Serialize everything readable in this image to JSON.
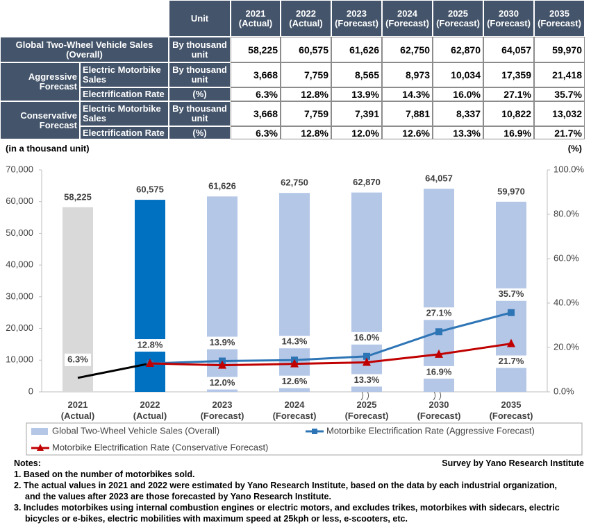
{
  "table": {
    "unit_header": "Unit",
    "years": [
      "2021 (Actual)",
      "2022 (Actual)",
      "2023 (Forecast)",
      "2024 (Forecast)",
      "2025 (Forecast)",
      "2030 (Forecast)",
      "2035 (Forecast)"
    ],
    "overall": {
      "label": "Global Two-Wheel Vehicle Sales (Overall)",
      "unit": "By thousand unit",
      "cells": [
        "58,225",
        "60,575",
        "61,626",
        "62,750",
        "62,870",
        "64,057",
        "59,970"
      ]
    },
    "groups": [
      {
        "label": "Aggressive Forecast",
        "rows": [
          {
            "label": "Electric Motorbike Sales",
            "unit": "By thousand unit",
            "cells": [
              "3,668",
              "7,759",
              "8,565",
              "8,973",
              "10,034",
              "17,359",
              "21,418"
            ]
          },
          {
            "label": "Electrification Rate",
            "unit": "(%)",
            "cells": [
              "6.3%",
              "12.8%",
              "13.9%",
              "14.3%",
              "16.0%",
              "27.1%",
              "35.7%"
            ]
          }
        ]
      },
      {
        "label": "Conservative Forecast",
        "rows": [
          {
            "label": "Electric Motorbike Sales",
            "unit": "By thousand unit",
            "cells": [
              "3,668",
              "7,759",
              "7,391",
              "7,881",
              "8,337",
              "10,822",
              "13,032"
            ]
          },
          {
            "label": "Electrification Rate",
            "unit": "(%)",
            "cells": [
              "6.3%",
              "12.8%",
              "12.0%",
              "12.6%",
              "13.3%",
              "16.9%",
              "21.7%"
            ]
          }
        ]
      }
    ]
  },
  "chart_data": {
    "type": "bar",
    "y_label": "(in a thousand unit)",
    "y2_label": "(%)",
    "categories": [
      "2021 (Actual)",
      "2022 (Actual)",
      "2023 (Forecast)",
      "2024 (Forecast)",
      "2025 (Forecast)",
      "2030 (Forecast)",
      "2035 (Forecast)"
    ],
    "ylim": [
      0,
      70000
    ],
    "yticks": [
      0,
      {
        "value": 10000,
        "label": "10,000"
      },
      {
        "value": 20000,
        "label": "20,000"
      },
      {
        "value": 30000,
        "label": "30,000"
      },
      {
        "value": 40000,
        "label": "40,000"
      },
      {
        "value": 50000,
        "label": "50,000"
      },
      {
        "value": 60000,
        "label": "60,000"
      },
      {
        "value": 70000,
        "label": "70,000"
      }
    ],
    "y2lim": [
      0,
      100
    ],
    "y2ticks": [
      {
        "value": 0,
        "label": "0.0%"
      },
      {
        "value": 20,
        "label": "20.0%"
      },
      {
        "value": 40,
        "label": "40.0%"
      },
      {
        "value": 60,
        "label": "60.0%"
      },
      {
        "value": 80,
        "label": "80.0%"
      },
      {
        "value": 100,
        "label": "100.0%"
      }
    ],
    "series": [
      {
        "name": "Global Two-Wheel Vehicle Sales (Overall)",
        "type": "bar",
        "color": "#b4c7e7",
        "colors": [
          "#d9d9d9",
          "#0070c0",
          "#b4c7e7",
          "#b4c7e7",
          "#b4c7e7",
          "#b4c7e7",
          "#b4c7e7"
        ],
        "values": [
          58225,
          60575,
          61626,
          62750,
          62870,
          64057,
          59970
        ],
        "value_labels": [
          "58,225",
          "60,575",
          "61,626",
          "62,750",
          "62,870",
          "64,057",
          "59,970"
        ]
      },
      {
        "type": "line",
        "axis": "y2",
        "color": "#000000",
        "values": [
          6.3,
          12.8,
          null,
          null,
          null,
          null,
          null
        ],
        "value_labels": [
          "6.3%",
          "12.8%",
          null,
          null,
          null,
          null,
          null
        ]
      },
      {
        "name": "Motorbike Electrification Rate (Aggressive Forecast)",
        "type": "line",
        "axis": "y2",
        "color": "#2e75b6",
        "marker": "square",
        "values": [
          null,
          12.8,
          13.9,
          14.3,
          16.0,
          27.1,
          35.7
        ],
        "value_labels": [
          null,
          null,
          "13.9%",
          "14.3%",
          "16.0%",
          "27.1%",
          "35.7%"
        ]
      },
      {
        "name": "Motorbike Electrification Rate (Conservative Forecast)",
        "type": "line",
        "axis": "y2",
        "color": "#c00000",
        "marker": "triangle",
        "values": [
          null,
          12.8,
          12.0,
          12.6,
          13.3,
          16.9,
          21.7
        ],
        "value_labels": [
          null,
          null,
          "12.0%",
          "12.6%",
          "13.3%",
          "16.9%",
          "21.7%"
        ]
      }
    ]
  },
  "notes": {
    "heading": "Notes:",
    "source": "Survey by Yano Research Institute",
    "items": [
      "1. Based on the number of motorbikes sold.",
      "2. The actual values in 2021 and 2022 were estimated by Yano Research Institute, based on the data by each industrial organization, and the values after 2023 are those forecasted by Yano Research Institute.",
      "3. Includes motorbikes using internal combustion engines or electric motors, and excludes trikes, motorbikes with sidecars, electric bicycles or e-bikes, electric mobilities with maximum speed at 25kph or less, e-scooters, etc."
    ]
  }
}
